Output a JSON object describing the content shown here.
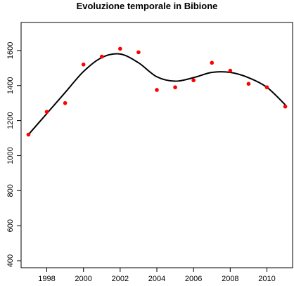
{
  "chart_data": {
    "type": "scatter",
    "title": "Evoluzione temporale in Bibione",
    "xlabel": "",
    "ylabel": "",
    "xlim": [
      1996.6,
      2011.4
    ],
    "ylim": [
      360,
      1760
    ],
    "x_ticks": [
      1998,
      2000,
      2002,
      2004,
      2006,
      2008,
      2010
    ],
    "y_ticks": [
      400,
      600,
      800,
      1000,
      1200,
      1400,
      1600
    ],
    "grid": false,
    "legend": "none",
    "series": [
      {
        "type": "scatter",
        "color": "#ff0000",
        "x": [
          1997,
          1998,
          1999,
          2000,
          2001,
          2002,
          2003,
          2004,
          2005,
          2006,
          2007,
          2008,
          2009,
          2010,
          2011
        ],
        "y": [
          1120,
          1250,
          1300,
          1520,
          1565,
          1610,
          1590,
          1375,
          1390,
          1430,
          1530,
          1485,
          1410,
          1390,
          1280
        ]
      },
      {
        "type": "line",
        "color": "#000000",
        "x": [
          1997,
          1998,
          1999,
          2000,
          2001,
          2002,
          2003,
          2004,
          2005,
          2006,
          2007,
          2008,
          2009,
          2010,
          2011
        ],
        "y": [
          1120,
          1240,
          1360,
          1480,
          1560,
          1580,
          1530,
          1450,
          1425,
          1445,
          1475,
          1475,
          1445,
          1390,
          1290
        ]
      }
    ]
  }
}
